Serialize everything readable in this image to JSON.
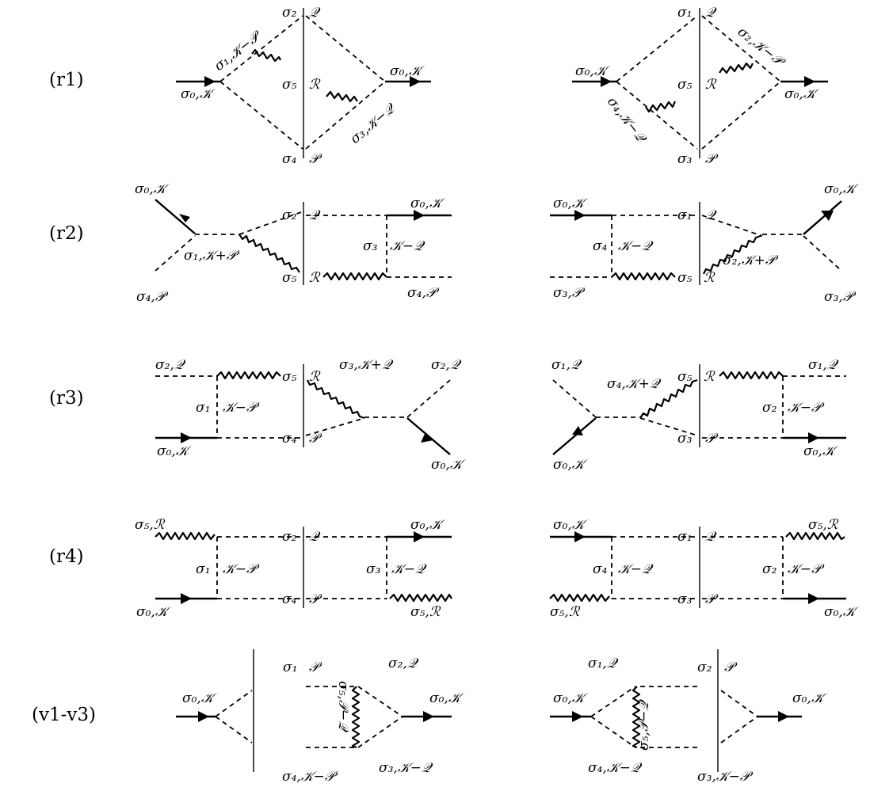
{
  "rows": [
    {
      "id": "r1",
      "label": "(r1)",
      "left": [
        "σ₂",
        "𝒬",
        "σ₁,𝒦−𝒫",
        "σ₅",
        "ℛ",
        "σ₀,𝒦",
        "σ₀,𝒦",
        "σ₃,𝒦−𝒬",
        "σ₄",
        "𝒫"
      ],
      "right": [
        "σ₁",
        "𝒬",
        "σ₂,𝒦−𝒫",
        "σ₀,𝒦",
        "σ₅",
        "ℛ",
        "σ₄,𝒦−𝒬",
        "σ₀,𝒦",
        "σ₃",
        "𝒫"
      ]
    },
    {
      "id": "r2",
      "label": "(r2)",
      "left": [
        "σ₀,𝒦",
        "σ₂",
        "𝒬",
        "σ₀,𝒦",
        "σ₃",
        "𝒦−𝒬",
        "σ₁,𝒦+𝒫",
        "σ₅",
        "ℛ",
        "σ₄,𝒫",
        "σ₄,𝒫"
      ],
      "right": [
        "σ₀,𝒦",
        "σ₁",
        "𝒬",
        "σ₀,𝒦",
        "σ₄",
        "𝒦−𝒬",
        "σ₅",
        "ℛ",
        "σ₂,𝒦+𝒫",
        "σ₃,𝒫",
        "σ₃,𝒫"
      ]
    },
    {
      "id": "r3",
      "label": "(r3)",
      "left": [
        "σ₂,𝒬",
        "σ₅",
        "ℛ",
        "σ₃,𝒦+𝒬",
        "σ₂,𝒬",
        "σ₁",
        "𝒦−𝒫",
        "σ₄",
        "𝒫",
        "σ₀,𝒦",
        "σ₀,𝒦"
      ],
      "right": [
        "σ₁,𝒬",
        "σ₄,𝒦+𝒬",
        "σ₅",
        "ℛ",
        "σ₁,𝒬",
        "σ₂",
        "𝒦−𝒫",
        "σ₃",
        "𝒫",
        "σ₀,𝒦",
        "σ₀,𝒦"
      ]
    },
    {
      "id": "r4",
      "label": "(r4)",
      "left": [
        "σ₅,ℛ",
        "σ₂",
        "𝒬",
        "σ₀,𝒦",
        "σ₁",
        "𝒦−𝒫",
        "σ₃",
        "𝒦−𝒬",
        "σ₄",
        "𝒫",
        "σ₀,𝒦",
        "σ₅,ℛ"
      ],
      "right": [
        "σ₀,𝒦",
        "σ₁",
        "𝒬",
        "σ₅,ℛ",
        "σ₄",
        "𝒦−𝒬",
        "σ₂",
        "𝒦−𝒫",
        "σ₃",
        "𝒫",
        "σ₅,ℛ",
        "σ₀,𝒦"
      ]
    },
    {
      "id": "v1-v3",
      "label": "(v1-v3)",
      "left": [
        "σ₁",
        "𝒫",
        "σ₂,𝒬",
        "σ₀,𝒦",
        "σ₅,𝒫−𝒬",
        "σ₀,𝒦",
        "σ₄,𝒦−𝒫",
        "σ₃,𝒦−𝒬"
      ],
      "right": [
        "σ₁,𝒬",
        "σ₂",
        "𝒫",
        "σ₀,𝒦",
        "σ₅,𝒫−𝒬",
        "σ₀,𝒦",
        "σ₄,𝒦−𝒬",
        "σ₃,𝒦−𝒫"
      ]
    }
  ]
}
